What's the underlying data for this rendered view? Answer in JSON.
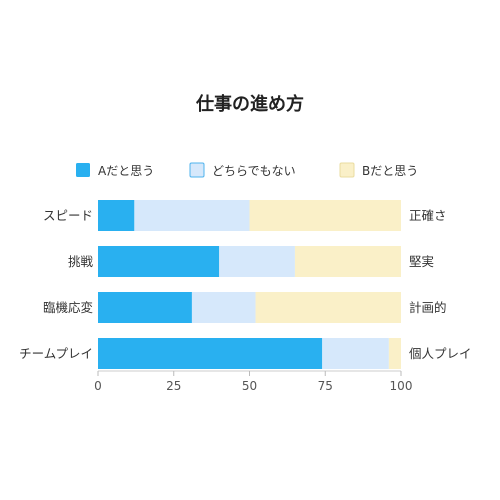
{
  "chart_data": {
    "type": "bar",
    "orientation": "horizontal",
    "stacked": true,
    "title": "仕事の進め方",
    "legend_position": "top",
    "grid": false,
    "categories": [
      "スピード",
      "挑戦",
      "臨機応変",
      "チームプレイ"
    ],
    "right_labels": [
      "正確さ",
      "堅実",
      "計画的",
      "個人プレイ"
    ],
    "series": [
      {
        "name": "Aだと思う",
        "color": "#29b0f0",
        "values": [
          12,
          40,
          31,
          74
        ]
      },
      {
        "name": "どちらでもない",
        "color": "#d6e8fb",
        "values": [
          38,
          25,
          21,
          22
        ]
      },
      {
        "name": "Bだと思う",
        "color": "#faf0c8",
        "values": [
          50,
          35,
          48,
          4
        ]
      }
    ],
    "xlim": [
      0,
      100
    ],
    "xticks": [
      0,
      25,
      50,
      75,
      100
    ]
  }
}
